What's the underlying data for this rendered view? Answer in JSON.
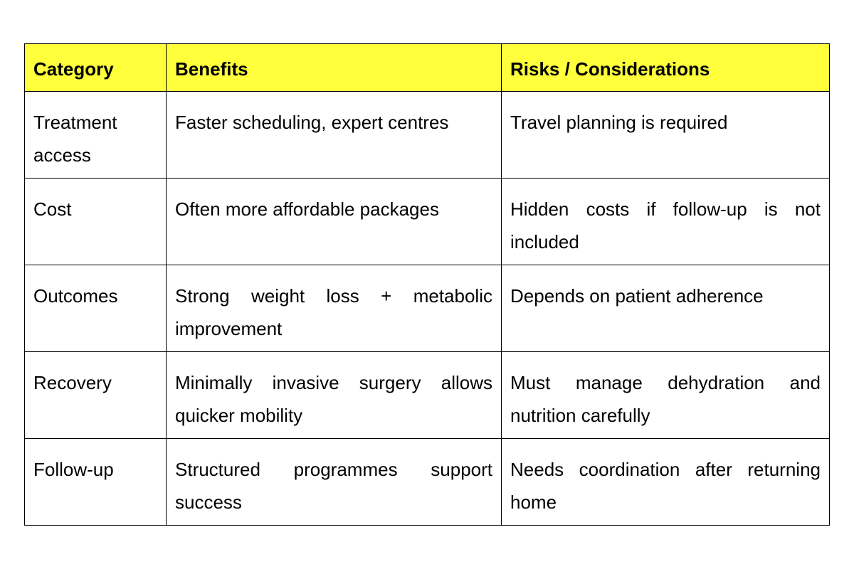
{
  "colors": {
    "header_bg": "#ffff3c",
    "border": "#000000"
  },
  "table": {
    "headers": [
      "Category",
      "Benefits",
      "Risks / Considerations"
    ],
    "rows": [
      [
        "Treatment access",
        "Faster scheduling, expert centres",
        "Travel planning is required"
      ],
      [
        "Cost",
        "Often more affordable packages",
        "Hidden costs if follow-up is not included"
      ],
      [
        "Outcomes",
        "Strong weight loss + metabolic improvement",
        "Depends on patient adherence"
      ],
      [
        "Recovery",
        "Minimally invasive surgery allows quicker mobility",
        "Must manage dehydration and nutrition carefully"
      ],
      [
        "Follow-up",
        "Structured programmes support success",
        "Needs coordination after returning home"
      ]
    ]
  }
}
